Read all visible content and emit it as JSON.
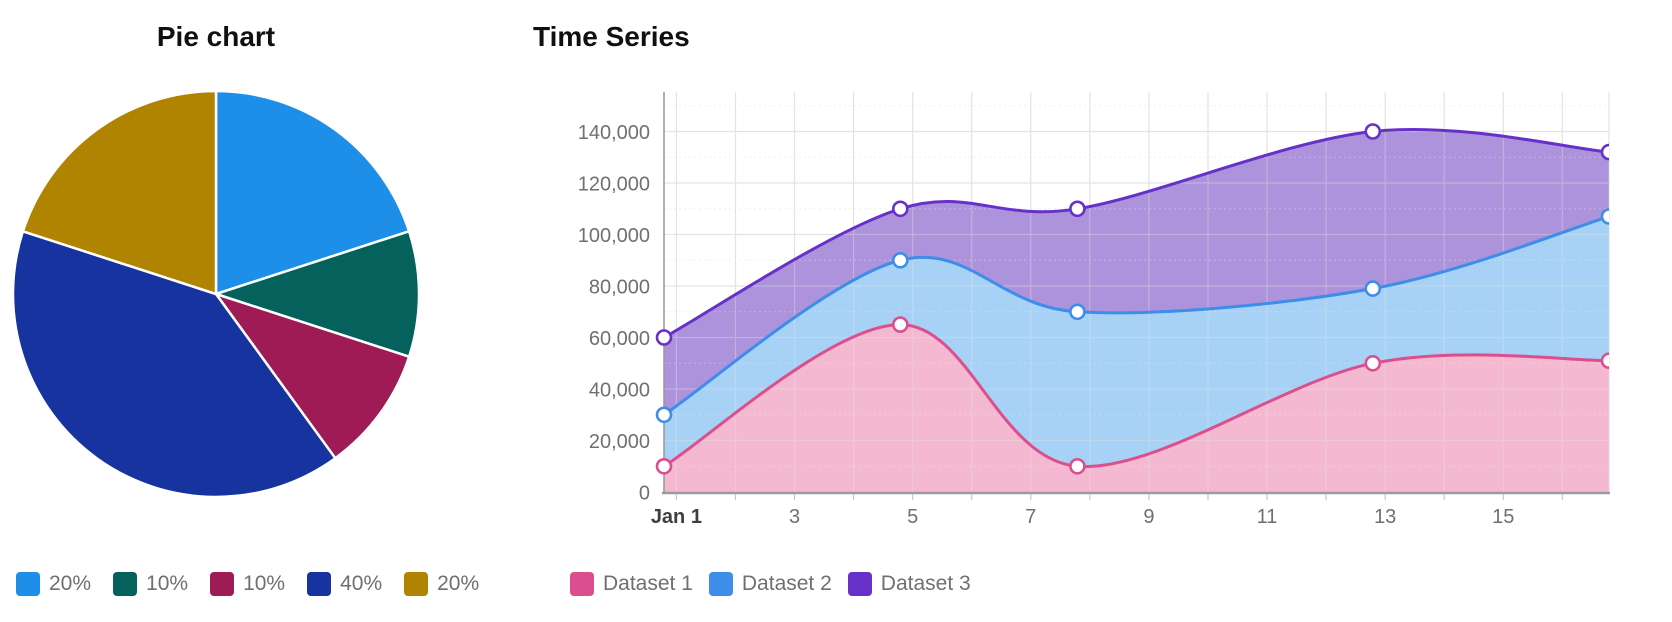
{
  "colors": {
    "background": "#FFFFFF",
    "title_text": "#101010",
    "tick_text": "#707070",
    "x_first_tick_text": "#3F3F3F",
    "legend_text": "#6F6F6F",
    "grid_major": "#E3E3E3",
    "grid_minor": "#EFEFEF",
    "axis_line": "#9B9B9B"
  },
  "chart_data": [
    {
      "type": "pie",
      "title": "Pie chart",
      "labels": [
        "20%",
        "10%",
        "10%",
        "40%",
        "20%"
      ],
      "values": [
        20,
        10,
        10,
        40,
        20
      ],
      "colors": [
        "#1E8FE8",
        "#04615B",
        "#9E1B55",
        "#17339F",
        "#B18400"
      ],
      "start_angle": "top",
      "direction": "clockwise",
      "slice_border_color": "#FFFFFF",
      "legend_position": "bottom"
    },
    {
      "type": "area",
      "title": "Time Series",
      "x_unit": "day of January",
      "x": [
        1,
        5,
        8,
        13,
        17
      ],
      "x_range": [
        1,
        17
      ],
      "x_tick_days": [
        1,
        3,
        5,
        7,
        9,
        11,
        13,
        15
      ],
      "x_tick_labels": [
        "Jan 1",
        "3",
        "5",
        "7",
        "9",
        "11",
        "13",
        "15"
      ],
      "y_ticks": [
        0,
        20000,
        40000,
        60000,
        80000,
        100000,
        120000,
        140000
      ],
      "y_tick_labels": [
        "0",
        "20,000",
        "40,000",
        "60,000",
        "80,000",
        "100,000",
        "120,000",
        "140,000"
      ],
      "ylim": [
        0,
        155000
      ],
      "grid": true,
      "curve": "smooth",
      "legend_position": "bottom",
      "series": [
        {
          "name": "Dataset 1",
          "values": [
            10000,
            65000,
            10000,
            50000,
            51000
          ],
          "line_color": "#DB4F8E",
          "fill_color": "#F4B9D0"
        },
        {
          "name": "Dataset 2",
          "values": [
            30000,
            90000,
            70000,
            79000,
            107000
          ],
          "line_color": "#3E8DE8",
          "fill_color": "#A7D2F5"
        },
        {
          "name": "Dataset 3",
          "values": [
            60000,
            110000,
            110000,
            140000,
            132000
          ],
          "line_color": "#6731C9",
          "fill_color": "#AC93DB"
        }
      ],
      "draw_order": [
        "Dataset 3",
        "Dataset 2",
        "Dataset 1"
      ]
    }
  ]
}
